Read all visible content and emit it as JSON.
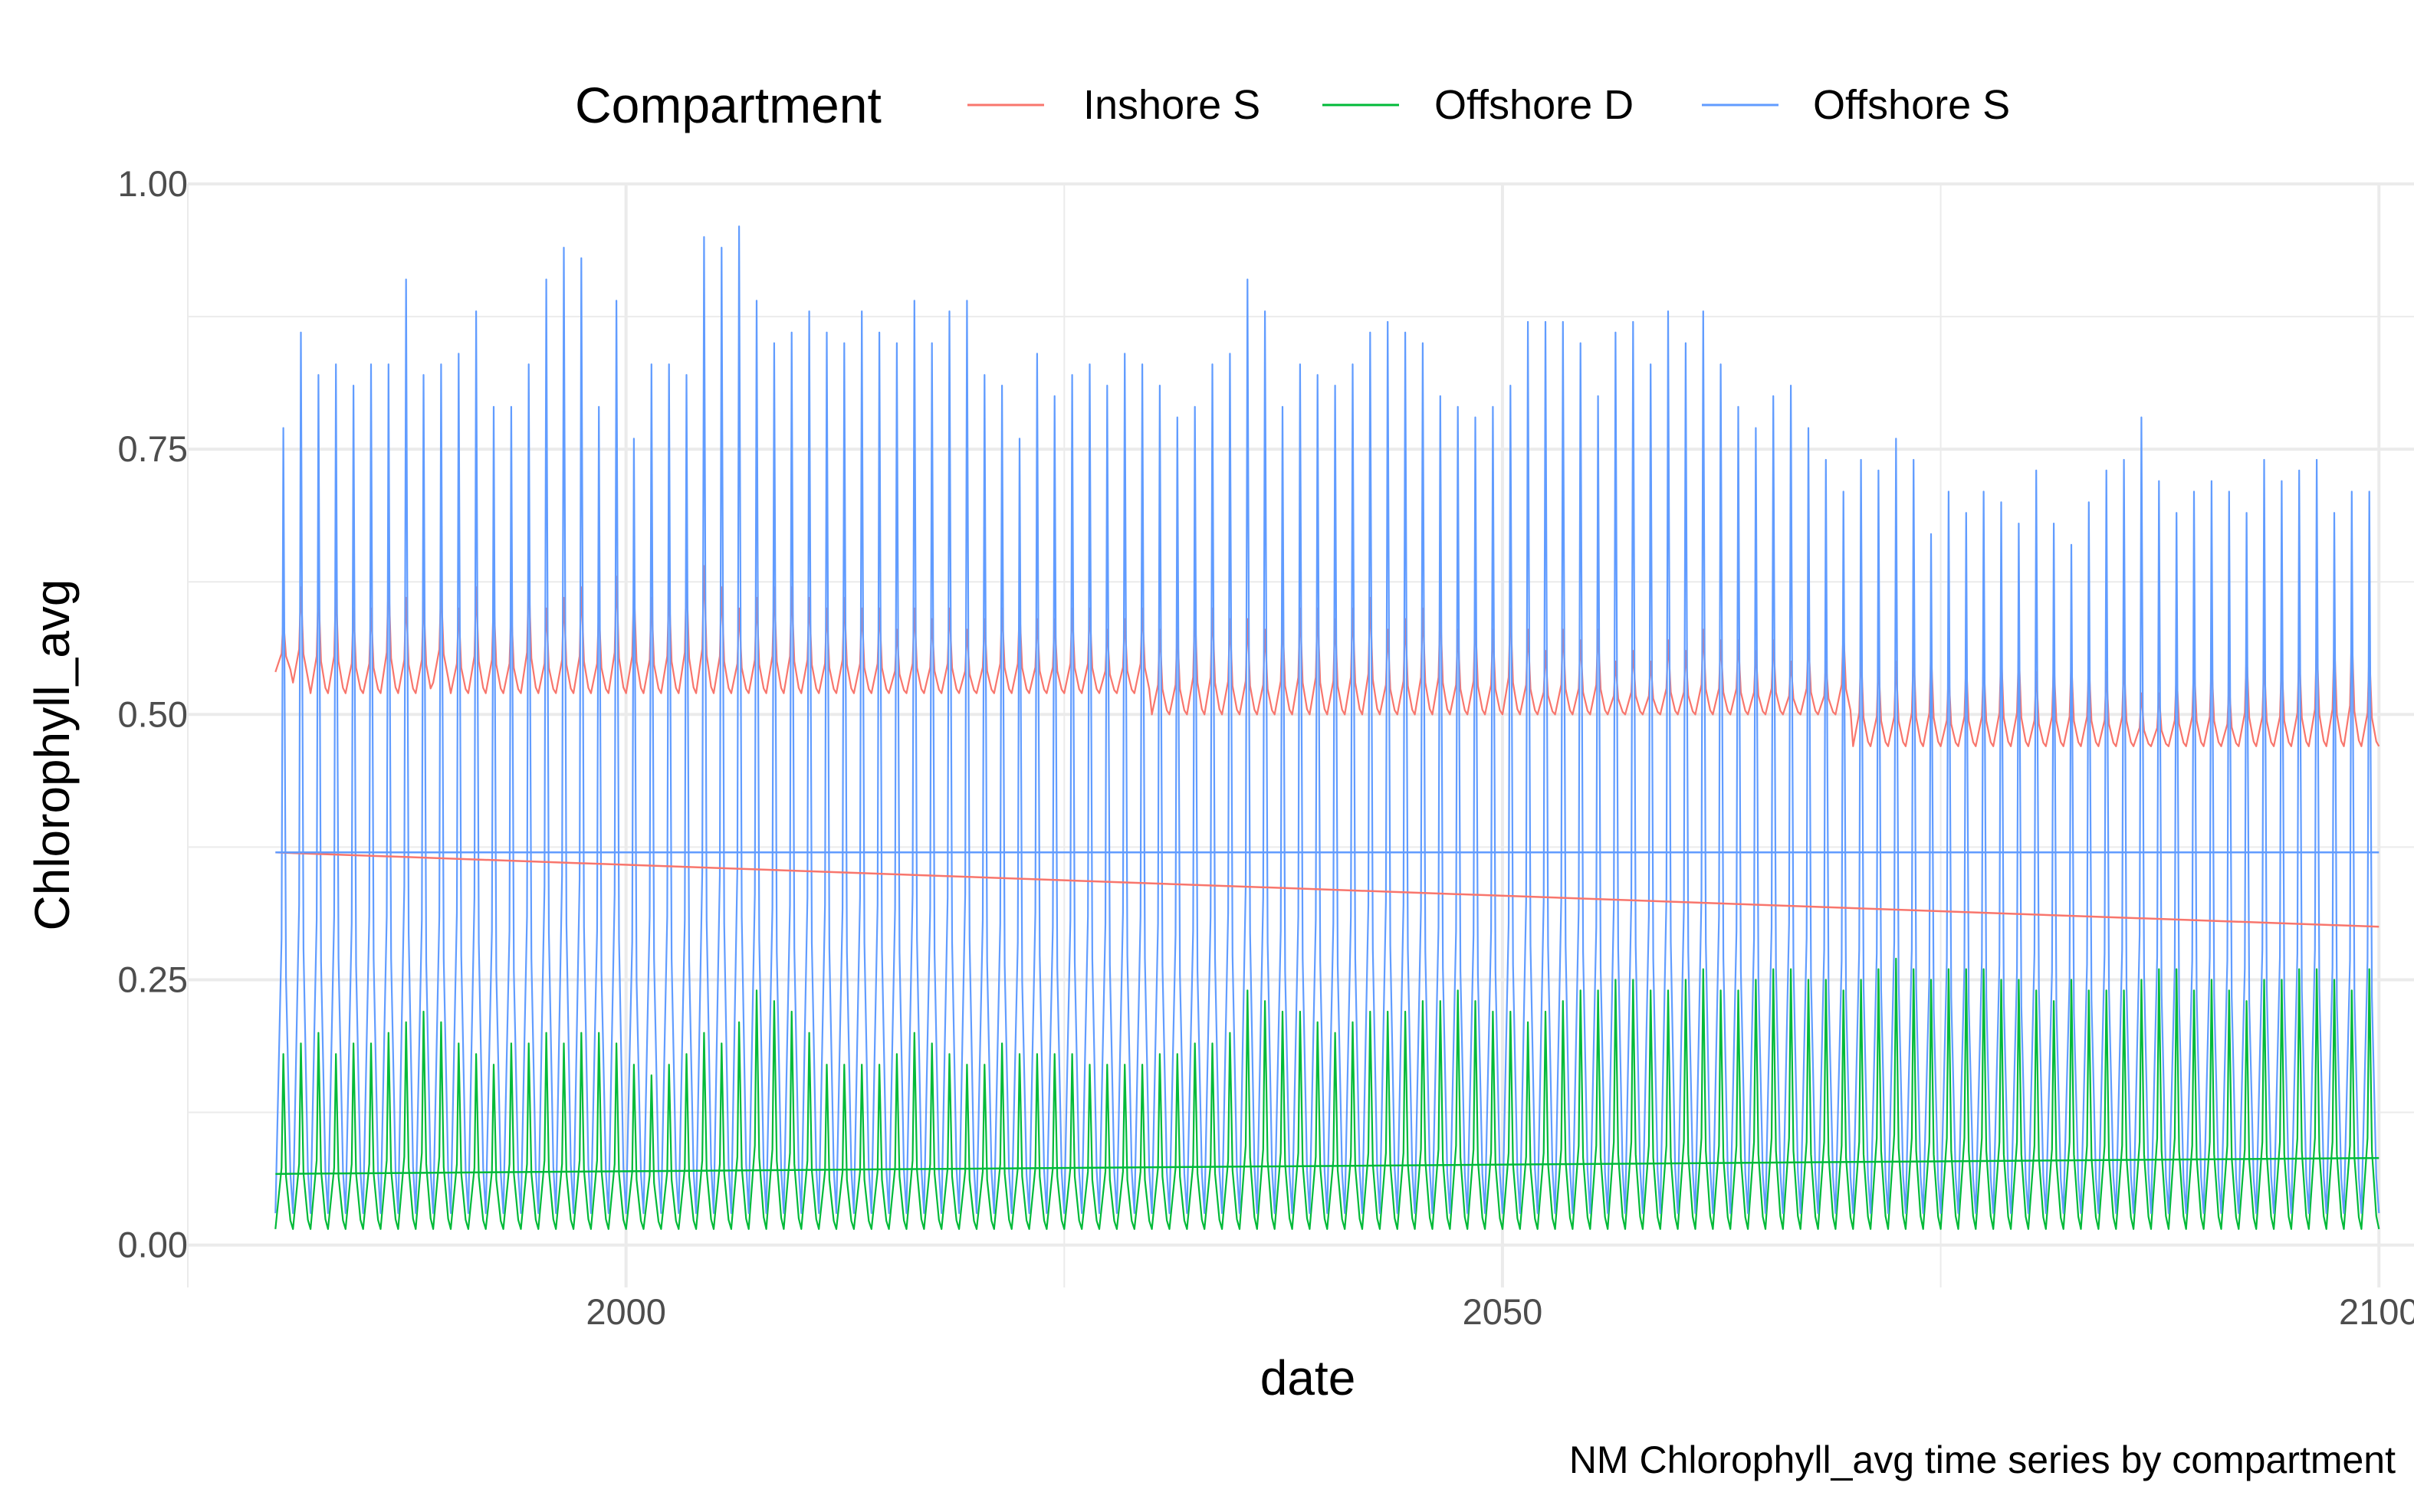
{
  "chart_data": {
    "type": "line",
    "title": "",
    "caption": "NM Chlorophyll_avg time series by compartment",
    "xlabel": "date",
    "ylabel": "Chlorophyll_avg",
    "xlim": [
      1975,
      2102
    ],
    "ylim": [
      -0.04,
      1.0
    ],
    "x_ticks": [
      {
        "value": 2000,
        "label": "2000"
      },
      {
        "value": 2050,
        "label": "2050"
      },
      {
        "value": 2100,
        "label": "2100"
      }
    ],
    "y_ticks": [
      {
        "value": 0.0,
        "label": "0.00"
      },
      {
        "value": 0.25,
        "label": "0.25"
      },
      {
        "value": 0.5,
        "label": "0.50"
      },
      {
        "value": 0.75,
        "label": "0.75"
      },
      {
        "value": 1.0,
        "label": "1.00"
      }
    ],
    "grid": true,
    "legend": {
      "title": "Compartment",
      "position": "top"
    },
    "x_range": [
      1980,
      2100
    ],
    "series": [
      {
        "name": "Inshore S",
        "color": "#F8766D",
        "annual_peak": [
          0.59,
          0.62,
          0.62,
          0.62,
          0.6,
          0.6,
          0.63,
          0.61,
          0.61,
          0.62,
          0.6,
          0.62,
          0.61,
          0.6,
          0.63,
          0.6,
          0.61,
          0.62,
          0.6,
          0.63,
          0.62,
          0.61,
          0.62,
          0.63,
          0.64,
          0.62,
          0.6,
          0.61,
          0.62,
          0.62,
          0.61,
          0.6,
          0.61,
          0.6,
          0.6,
          0.58,
          0.6,
          0.59,
          0.6,
          0.58,
          0.59,
          0.6,
          0.6,
          0.59,
          0.59,
          0.6,
          0.6,
          0.58,
          0.59,
          0.6,
          0.58,
          0.58,
          0.6,
          0.6,
          0.59,
          0.59,
          0.58,
          0.59,
          0.6,
          0.6,
          0.59,
          0.6,
          0.61,
          0.58,
          0.59,
          0.6,
          0.6,
          0.58,
          0.59,
          0.58,
          0.6,
          0.58,
          0.56,
          0.58,
          0.57,
          0.58,
          0.55,
          0.56,
          0.55,
          0.57,
          0.56,
          0.58,
          0.57,
          0.57,
          0.56,
          0.57,
          0.55,
          0.57,
          0.55,
          0.58,
          0.56,
          0.55,
          0.55,
          0.56,
          0.56,
          0.54,
          0.55,
          0.55,
          0.56,
          0.56,
          0.54,
          0.55,
          0.55,
          0.55,
          0.54,
          0.55,
          0.52,
          0.52,
          0.54,
          0.55,
          0.55,
          0.53,
          0.56,
          0.55,
          0.55,
          0.56,
          0.57,
          0.57,
          0.58,
          0.56
        ],
        "annual_trough": [
          0.54,
          0.53,
          0.52,
          0.52,
          0.52,
          0.52,
          0.52,
          0.52,
          0.52,
          0.53,
          0.52,
          0.52,
          0.52,
          0.52,
          0.52,
          0.52,
          0.52,
          0.52,
          0.52,
          0.52,
          0.52,
          0.52,
          0.52,
          0.52,
          0.52,
          0.52,
          0.52,
          0.52,
          0.52,
          0.52,
          0.52,
          0.52,
          0.52,
          0.52,
          0.52,
          0.52,
          0.52,
          0.52,
          0.52,
          0.52,
          0.52,
          0.52,
          0.52,
          0.52,
          0.52,
          0.52,
          0.52,
          0.52,
          0.52,
          0.52,
          0.5,
          0.5,
          0.5,
          0.5,
          0.5,
          0.5,
          0.5,
          0.5,
          0.5,
          0.5,
          0.5,
          0.5,
          0.5,
          0.5,
          0.5,
          0.5,
          0.5,
          0.5,
          0.5,
          0.5,
          0.5,
          0.5,
          0.5,
          0.5,
          0.5,
          0.5,
          0.5,
          0.5,
          0.5,
          0.5,
          0.5,
          0.5,
          0.5,
          0.5,
          0.5,
          0.5,
          0.5,
          0.5,
          0.5,
          0.5,
          0.47,
          0.47,
          0.47,
          0.47,
          0.47,
          0.47,
          0.47,
          0.47,
          0.47,
          0.47,
          0.47,
          0.47,
          0.47,
          0.47,
          0.47,
          0.47,
          0.47,
          0.47,
          0.47,
          0.47,
          0.47,
          0.47,
          0.47,
          0.47,
          0.47,
          0.47,
          0.47,
          0.47,
          0.47,
          0.47
        ],
        "trend": {
          "x": [
            1980,
            2100
          ],
          "y": [
            0.37,
            0.3
          ]
        }
      },
      {
        "name": "Offshore D",
        "color": "#00BA38",
        "annual_peak": [
          0.18,
          0.19,
          0.2,
          0.18,
          0.19,
          0.19,
          0.2,
          0.21,
          0.22,
          0.21,
          0.19,
          0.18,
          0.17,
          0.19,
          0.19,
          0.2,
          0.19,
          0.2,
          0.2,
          0.19,
          0.17,
          0.16,
          0.17,
          0.18,
          0.2,
          0.19,
          0.21,
          0.24,
          0.23,
          0.22,
          0.2,
          0.17,
          0.17,
          0.17,
          0.17,
          0.18,
          0.2,
          0.19,
          0.18,
          0.17,
          0.17,
          0.19,
          0.18,
          0.18,
          0.18,
          0.18,
          0.17,
          0.17,
          0.17,
          0.17,
          0.18,
          0.18,
          0.19,
          0.19,
          0.2,
          0.24,
          0.23,
          0.22,
          0.22,
          0.21,
          0.2,
          0.21,
          0.22,
          0.22,
          0.22,
          0.23,
          0.23,
          0.24,
          0.23,
          0.22,
          0.22,
          0.21,
          0.22,
          0.23,
          0.24,
          0.24,
          0.25,
          0.25,
          0.24,
          0.24,
          0.25,
          0.26,
          0.24,
          0.24,
          0.25,
          0.26,
          0.26,
          0.25,
          0.25,
          0.24,
          0.25,
          0.26,
          0.27,
          0.26,
          0.25,
          0.26,
          0.26,
          0.26,
          0.25,
          0.25,
          0.24,
          0.23,
          0.25,
          0.24,
          0.24,
          0.24,
          0.25,
          0.26,
          0.26,
          0.24,
          0.25,
          0.24,
          0.23,
          0.25,
          0.25,
          0.26,
          0.26,
          0.25,
          0.24,
          0.26
        ],
        "annual_trough": [
          0.015,
          0.015,
          0.015,
          0.015,
          0.015,
          0.015,
          0.015,
          0.015,
          0.015,
          0.015,
          0.015,
          0.015,
          0.015,
          0.015,
          0.015,
          0.015,
          0.015,
          0.015,
          0.015,
          0.015,
          0.015,
          0.015,
          0.015,
          0.015,
          0.015,
          0.015,
          0.015,
          0.015,
          0.015,
          0.015,
          0.015,
          0.015,
          0.015,
          0.015,
          0.015,
          0.015,
          0.015,
          0.015,
          0.015,
          0.015,
          0.015,
          0.015,
          0.015,
          0.015,
          0.015,
          0.015,
          0.015,
          0.015,
          0.015,
          0.015,
          0.015,
          0.015,
          0.015,
          0.015,
          0.015,
          0.015,
          0.015,
          0.015,
          0.015,
          0.015,
          0.015,
          0.015,
          0.015,
          0.015,
          0.015,
          0.015,
          0.015,
          0.015,
          0.015,
          0.015,
          0.015,
          0.015,
          0.015,
          0.015,
          0.015,
          0.015,
          0.015,
          0.015,
          0.015,
          0.015,
          0.015,
          0.015,
          0.015,
          0.015,
          0.015,
          0.015,
          0.015,
          0.015,
          0.015,
          0.015,
          0.015,
          0.015,
          0.015,
          0.015,
          0.015,
          0.015,
          0.015,
          0.015,
          0.015,
          0.015,
          0.015,
          0.015,
          0.015,
          0.015,
          0.015,
          0.015,
          0.015,
          0.015,
          0.015,
          0.015,
          0.015,
          0.015,
          0.015,
          0.015,
          0.015,
          0.015,
          0.015,
          0.015,
          0.015,
          0.015
        ],
        "trend": {
          "x": [
            1980,
            2100
          ],
          "y": [
            0.067,
            0.082
          ]
        }
      },
      {
        "name": "Offshore S",
        "color": "#619CFF",
        "annual_peak": [
          0.77,
          0.86,
          0.82,
          0.83,
          0.81,
          0.83,
          0.83,
          0.91,
          0.82,
          0.83,
          0.84,
          0.88,
          0.79,
          0.79,
          0.83,
          0.91,
          0.94,
          0.93,
          0.79,
          0.89,
          0.76,
          0.83,
          0.83,
          0.82,
          0.95,
          0.94,
          0.96,
          0.89,
          0.85,
          0.86,
          0.88,
          0.86,
          0.85,
          0.88,
          0.86,
          0.85,
          0.89,
          0.85,
          0.88,
          0.89,
          0.82,
          0.81,
          0.76,
          0.84,
          0.8,
          0.82,
          0.83,
          0.81,
          0.84,
          0.83,
          0.81,
          0.78,
          0.79,
          0.83,
          0.84,
          0.91,
          0.88,
          0.79,
          0.83,
          0.82,
          0.81,
          0.83,
          0.86,
          0.87,
          0.86,
          0.85,
          0.8,
          0.79,
          0.78,
          0.79,
          0.81,
          0.87,
          0.87,
          0.87,
          0.85,
          0.8,
          0.86,
          0.87,
          0.83,
          0.88,
          0.85,
          0.88,
          0.83,
          0.79,
          0.77,
          0.8,
          0.81,
          0.77,
          0.74,
          0.71,
          0.74,
          0.73,
          0.76,
          0.74,
          0.67,
          0.71,
          0.69,
          0.71,
          0.7,
          0.68,
          0.73,
          0.68,
          0.66,
          0.7,
          0.73,
          0.74,
          0.78,
          0.72,
          0.69,
          0.71,
          0.72,
          0.71,
          0.69,
          0.74,
          0.72,
          0.73,
          0.74,
          0.69,
          0.71,
          0.71
        ],
        "annual_trough": [
          0.03,
          0.03,
          0.03,
          0.03,
          0.03,
          0.03,
          0.03,
          0.03,
          0.03,
          0.03,
          0.03,
          0.03,
          0.03,
          0.03,
          0.03,
          0.03,
          0.03,
          0.03,
          0.03,
          0.03,
          0.03,
          0.03,
          0.03,
          0.03,
          0.03,
          0.03,
          0.03,
          0.03,
          0.03,
          0.03,
          0.03,
          0.03,
          0.03,
          0.03,
          0.03,
          0.03,
          0.03,
          0.03,
          0.03,
          0.03,
          0.03,
          0.03,
          0.03,
          0.03,
          0.03,
          0.03,
          0.03,
          0.03,
          0.03,
          0.03,
          0.03,
          0.03,
          0.03,
          0.03,
          0.03,
          0.03,
          0.03,
          0.03,
          0.03,
          0.03,
          0.03,
          0.03,
          0.03,
          0.03,
          0.03,
          0.03,
          0.03,
          0.03,
          0.03,
          0.03,
          0.03,
          0.03,
          0.03,
          0.03,
          0.03,
          0.03,
          0.03,
          0.03,
          0.03,
          0.03,
          0.03,
          0.03,
          0.03,
          0.03,
          0.03,
          0.03,
          0.03,
          0.03,
          0.03,
          0.03,
          0.03,
          0.03,
          0.03,
          0.03,
          0.03,
          0.03,
          0.03,
          0.03,
          0.03,
          0.03,
          0.03,
          0.03,
          0.03,
          0.03,
          0.03,
          0.03,
          0.03,
          0.03,
          0.03,
          0.03,
          0.03,
          0.03,
          0.03,
          0.03,
          0.03,
          0.03,
          0.03,
          0.03,
          0.03,
          0.03
        ],
        "trend": {
          "x": [
            1980,
            2100
          ],
          "y": [
            0.37,
            0.37
          ]
        }
      }
    ]
  }
}
